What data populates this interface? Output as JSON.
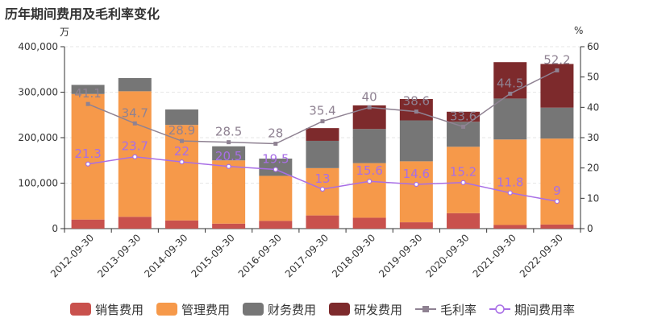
{
  "chart_data": {
    "type": "bar+line",
    "title": "历年期间费用及毛利率变化",
    "left_unit": "万",
    "right_unit": "%",
    "categories": [
      "2012-09-30",
      "2013-09-30",
      "2014-09-30",
      "2015-09-30",
      "2016-09-30",
      "2017-09-30",
      "2018-09-30",
      "2019-09-30",
      "2020-09-30",
      "2021-09-30",
      "2022-09-30"
    ],
    "y_left": {
      "min": 0,
      "max": 400000,
      "ticks": [
        0,
        100000,
        200000,
        300000,
        400000
      ],
      "tick_labels": [
        "0",
        "100,000",
        "200,000",
        "300,000",
        "400,000"
      ]
    },
    "y_right": {
      "min": 0,
      "max": 60,
      "ticks": [
        0,
        10,
        20,
        30,
        40,
        50,
        60
      ],
      "tick_labels": [
        "0",
        "10",
        "20",
        "30",
        "40",
        "50",
        "60"
      ]
    },
    "bar_series": [
      {
        "name": "销售费用",
        "color": "#c9514d",
        "values": [
          20000,
          26000,
          18000,
          11000,
          17000,
          29000,
          24000,
          14000,
          34000,
          8000,
          9000
        ]
      },
      {
        "name": "管理费用",
        "color": "#f6994a",
        "values": [
          276000,
          276000,
          210000,
          139000,
          99000,
          104000,
          120000,
          134000,
          146000,
          188000,
          189000
        ]
      },
      {
        "name": "财务费用",
        "color": "#767676",
        "values": [
          20000,
          29000,
          34000,
          31000,
          38000,
          60000,
          75000,
          90000,
          55000,
          90000,
          68000
        ]
      },
      {
        "name": "研发费用",
        "color": "#7d2a2c",
        "values": [
          0,
          0,
          0,
          0,
          0,
          28000,
          52000,
          47000,
          22000,
          80000,
          96000
        ]
      }
    ],
    "line_series": [
      {
        "name": "毛利率",
        "color": "#8f8292",
        "values": [
          41.1,
          34.7,
          28.9,
          28.5,
          28,
          35.4,
          40,
          38.6,
          33.6,
          44.5,
          52.2
        ],
        "labels": [
          "41.1",
          "34.7",
          "28.9",
          "28.5",
          "28",
          "35.4",
          "40",
          "38.6",
          "33.6",
          "44.5",
          "52.2"
        ]
      },
      {
        "name": "期间费用率",
        "color": "#a86ee6",
        "values": [
          21.3,
          23.7,
          22,
          20.5,
          19.5,
          13,
          15.6,
          14.6,
          15.2,
          11.8,
          9
        ],
        "labels": [
          "21.3",
          "23.7",
          "22",
          "20.5",
          "19.5",
          "13",
          "15.6",
          "14.6",
          "15.2",
          "11.8",
          "9"
        ]
      }
    ]
  }
}
